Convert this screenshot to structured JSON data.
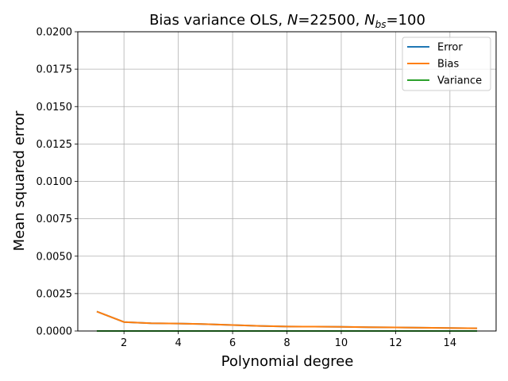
{
  "chart_data": {
    "type": "line",
    "title": {
      "prefix": "Bias variance OLS, ",
      "n_symbol": "N",
      "n_eq": "=22500, ",
      "nbs_symbol": "N",
      "nbs_sub": "bs",
      "nbs_eq": "=100"
    },
    "xlabel": "Polynomial degree",
    "ylabel": "Mean squared error",
    "xlim": [
      0.3,
      15.7
    ],
    "ylim": [
      0.0,
      0.02
    ],
    "xticks": [
      2,
      4,
      6,
      8,
      10,
      12,
      14
    ],
    "xtick_labels": [
      "2",
      "4",
      "6",
      "8",
      "10",
      "12",
      "14"
    ],
    "yticks": [
      0.0,
      0.0025,
      0.005,
      0.0075,
      0.01,
      0.0125,
      0.015,
      0.0175,
      0.02
    ],
    "ytick_labels": [
      "0.0000",
      "0.0025",
      "0.0050",
      "0.0075",
      "0.0100",
      "0.0125",
      "0.0150",
      "0.0175",
      "0.0200"
    ],
    "grid": true,
    "legend_position": "top-right",
    "x": [
      1,
      2,
      3,
      4,
      5,
      6,
      7,
      8,
      9,
      10,
      11,
      12,
      13,
      14,
      15
    ],
    "series": [
      {
        "name": "Error",
        "color": "#1f77b4",
        "values": [
          0.0013,
          0.0006,
          0.00052,
          0.0005,
          0.00046,
          0.0004,
          0.00034,
          0.0003,
          0.00029,
          0.00028,
          0.00025,
          0.00024,
          0.00022,
          0.0002,
          0.00018
        ]
      },
      {
        "name": "Bias",
        "color": "#ff7f0e",
        "values": [
          0.0013,
          0.0006,
          0.00052,
          0.0005,
          0.00046,
          0.0004,
          0.00034,
          0.0003,
          0.00029,
          0.00028,
          0.00025,
          0.00024,
          0.00022,
          0.0002,
          0.00018
        ]
      },
      {
        "name": "Variance",
        "color": "#2ca02c",
        "values": [
          1e-06,
          1e-06,
          1e-06,
          1e-06,
          1e-06,
          1e-06,
          1e-06,
          1e-06,
          1e-06,
          1e-06,
          1e-06,
          1e-06,
          1e-06,
          1e-06,
          1e-06
        ]
      }
    ]
  }
}
